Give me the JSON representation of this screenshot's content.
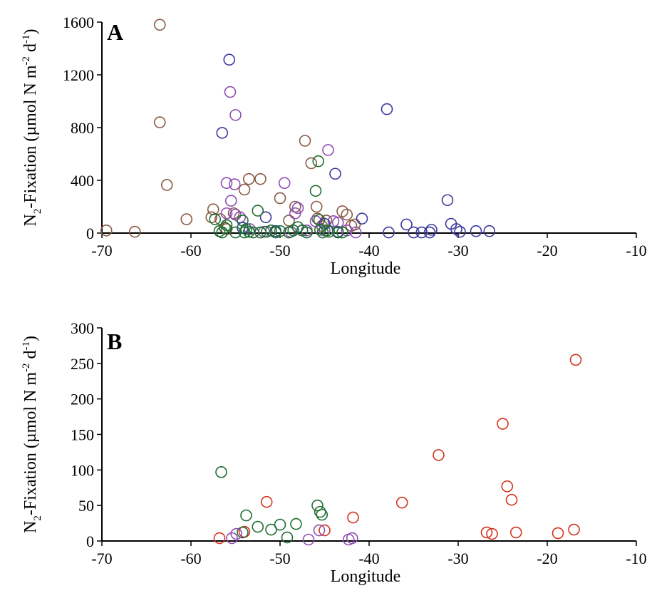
{
  "chart_data": [
    {
      "panel": "A",
      "type": "scatter",
      "xlabel": "Longitude",
      "ylabel": {
        "prefix": "N",
        "sub": "2",
        "middle": "-Fixation (µmol N m",
        "sup1": "-2",
        "middle2": " d",
        "sup2": "-1",
        "suffix": ")"
      },
      "xlim": [
        -70,
        -10
      ],
      "ylim": [
        0,
        1600
      ],
      "xticks": [
        -70,
        -60,
        -50,
        -40,
        -30,
        -20,
        -10
      ],
      "yticks": [
        0,
        400,
        800,
        1200,
        1600
      ],
      "grid": false,
      "series": [
        {
          "color": "#8a5a44",
          "points": [
            [
              -69.5,
              20
            ],
            [
              -66.3,
              10
            ],
            [
              -63.5,
              1580
            ],
            [
              -63.5,
              840
            ],
            [
              -62.7,
              365
            ],
            [
              -60.5,
              105
            ],
            [
              -57.7,
              120
            ],
            [
              -57.5,
              180
            ],
            [
              -56.7,
              105
            ],
            [
              -56.0,
              30
            ],
            [
              -55.2,
              150
            ],
            [
              -54.0,
              330
            ],
            [
              -53.5,
              410
            ],
            [
              -52.2,
              410
            ],
            [
              -50.0,
              265
            ],
            [
              -49.0,
              95
            ],
            [
              -48.3,
              200
            ],
            [
              -47.2,
              700
            ],
            [
              -46.5,
              530
            ],
            [
              -45.9,
              200
            ],
            [
              -45.8,
              110
            ],
            [
              -45.3,
              55
            ],
            [
              -44.8,
              95
            ],
            [
              -43.0,
              165
            ],
            [
              -42.5,
              140
            ],
            [
              -42.0,
              55
            ],
            [
              -41.6,
              65
            ]
          ]
        },
        {
          "color": "#8e4fb3",
          "points": [
            [
              -55.6,
              1070
            ],
            [
              -55.0,
              895
            ],
            [
              -56.0,
              380
            ],
            [
              -55.1,
              370
            ],
            [
              -55.5,
              245
            ],
            [
              -56.0,
              150
            ],
            [
              -55.0,
              140
            ],
            [
              -54.5,
              120
            ],
            [
              -53.4,
              30
            ],
            [
              -51.8,
              10
            ],
            [
              -49.5,
              380
            ],
            [
              -48.8,
              10
            ],
            [
              -48.3,
              150
            ],
            [
              -48.0,
              190
            ],
            [
              -47.0,
              20
            ],
            [
              -46.0,
              90
            ],
            [
              -45.0,
              20
            ],
            [
              -44.6,
              630
            ],
            [
              -44.0,
              90
            ],
            [
              -43.5,
              80
            ],
            [
              -42.5,
              20
            ],
            [
              -41.5,
              5
            ]
          ]
        },
        {
          "color": "#3a3aa0",
          "points": [
            [
              -55.7,
              1315
            ],
            [
              -56.5,
              760
            ],
            [
              -54.2,
              40
            ],
            [
              -51.6,
              120
            ],
            [
              -50.5,
              15
            ],
            [
              -47.5,
              20
            ],
            [
              -45.0,
              70
            ],
            [
              -43.8,
              450
            ],
            [
              -43.5,
              10
            ],
            [
              -40.8,
              110
            ],
            [
              -38.0,
              940
            ],
            [
              -37.8,
              5
            ],
            [
              -35.8,
              65
            ],
            [
              -35.0,
              5
            ],
            [
              -34.1,
              5
            ],
            [
              -33.2,
              5
            ],
            [
              -33.0,
              25
            ],
            [
              -31.2,
              250
            ],
            [
              -30.8,
              70
            ],
            [
              -30.2,
              30
            ],
            [
              -29.8,
              10
            ],
            [
              -28.0,
              15
            ],
            [
              -26.5,
              15
            ]
          ]
        },
        {
          "color": "#1f6e32",
          "points": [
            [
              -57.3,
              105
            ],
            [
              -56.8,
              15
            ],
            [
              -56.5,
              5
            ],
            [
              -56.2,
              40
            ],
            [
              -56.0,
              60
            ],
            [
              -55.0,
              5
            ],
            [
              -54.2,
              95
            ],
            [
              -54.0,
              5
            ],
            [
              -53.8,
              30
            ],
            [
              -53.5,
              10
            ],
            [
              -53.0,
              5
            ],
            [
              -52.5,
              170
            ],
            [
              -52.2,
              5
            ],
            [
              -51.5,
              10
            ],
            [
              -51.0,
              20
            ],
            [
              -50.5,
              5
            ],
            [
              -50.0,
              15
            ],
            [
              -49.0,
              5
            ],
            [
              -48.5,
              20
            ],
            [
              -48.0,
              45
            ],
            [
              -47.5,
              20
            ],
            [
              -47.0,
              5
            ],
            [
              -46.0,
              320
            ],
            [
              -45.7,
              545
            ],
            [
              -45.6,
              100
            ],
            [
              -45.5,
              25
            ],
            [
              -45.2,
              5
            ],
            [
              -44.7,
              20
            ],
            [
              -44.5,
              10
            ],
            [
              -43.5,
              5
            ],
            [
              -43.0,
              5
            ]
          ]
        }
      ]
    },
    {
      "panel": "B",
      "type": "scatter",
      "xlabel": "Longitude",
      "ylabel": {
        "prefix": "N",
        "sub": "2",
        "middle": "-Fixation (µmol N m",
        "sup1": "-2",
        "middle2": " d",
        "sup2": "-1",
        "suffix": ")"
      },
      "xlim": [
        -70,
        -10
      ],
      "ylim": [
        0,
        300
      ],
      "xticks": [
        -70,
        -60,
        -50,
        -40,
        -30,
        -20,
        -10
      ],
      "yticks": [
        0,
        50,
        100,
        150,
        200,
        250,
        300
      ],
      "grid": false,
      "series": [
        {
          "color": "#d4321f",
          "points": [
            [
              -56.8,
              4
            ],
            [
              -54.0,
              13
            ],
            [
              -51.5,
              55
            ],
            [
              -45.0,
              15
            ],
            [
              -41.8,
              33
            ],
            [
              -36.3,
              54
            ],
            [
              -32.2,
              121
            ],
            [
              -26.8,
              12
            ],
            [
              -26.2,
              10
            ],
            [
              -25.0,
              165
            ],
            [
              -24.5,
              77
            ],
            [
              -24.0,
              58
            ],
            [
              -23.5,
              12
            ],
            [
              -18.8,
              11
            ],
            [
              -17.0,
              16
            ],
            [
              -16.8,
              255
            ]
          ]
        },
        {
          "color": "#1f6e32",
          "points": [
            [
              -56.6,
              97
            ],
            [
              -54.2,
              12
            ],
            [
              -53.8,
              36
            ],
            [
              -52.5,
              20
            ],
            [
              -51.0,
              16
            ],
            [
              -50.0,
              23
            ],
            [
              -49.2,
              5
            ],
            [
              -48.2,
              24
            ],
            [
              -45.8,
              50
            ],
            [
              -45.5,
              41
            ],
            [
              -45.3,
              37
            ]
          ]
        },
        {
          "color": "#8e4fb3",
          "points": [
            [
              -55.4,
              4
            ],
            [
              -54.9,
              10
            ],
            [
              -45.6,
              15
            ],
            [
              -46.8,
              2
            ],
            [
              -42.3,
              2
            ],
            [
              -41.9,
              4
            ]
          ]
        }
      ]
    }
  ]
}
